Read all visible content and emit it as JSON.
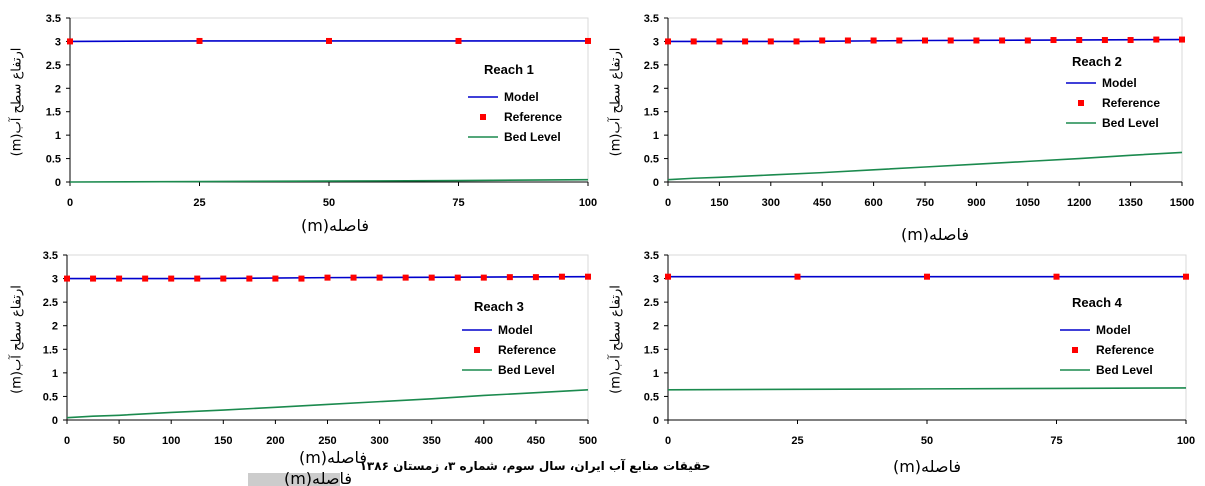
{
  "chart_data": [
    {
      "type": "line",
      "title": "Reach 1",
      "xlabel": "فاصله(m)",
      "ylabel": "ارتفاع سطح آب(m)",
      "xlim": [
        0,
        100
      ],
      "ylim": [
        0,
        3.5
      ],
      "x_ticks": [
        "0",
        "25",
        "50",
        "75",
        "100"
      ],
      "y_ticks": [
        "0",
        "0.5",
        "1",
        "1.5",
        "2",
        "2.5",
        "3",
        "3.5"
      ],
      "grid": false,
      "legend": "right",
      "series": [
        {
          "name": "Model",
          "style": "line",
          "color": "#0000cc",
          "x": [
            0,
            25,
            50,
            75,
            100
          ],
          "y": [
            3.0,
            3.01,
            3.01,
            3.01,
            3.01
          ]
        },
        {
          "name": "Reference",
          "style": "marker",
          "color": "#ff0000",
          "x": [
            0,
            25,
            50,
            75,
            100
          ],
          "y": [
            3.0,
            3.01,
            3.01,
            3.01,
            3.01
          ]
        },
        {
          "name": "Bed Level",
          "style": "line",
          "color": "#1b8a4e",
          "x": [
            0,
            25,
            50,
            75,
            100
          ],
          "y": [
            0.0,
            0.01,
            0.02,
            0.03,
            0.05
          ]
        }
      ]
    },
    {
      "type": "line",
      "title": "Reach 2",
      "xlabel": "فاصله(m)",
      "ylabel": "ارتفاع سطح آب(m)",
      "xlim": [
        0,
        1500
      ],
      "ylim": [
        0,
        3.5
      ],
      "x_ticks": [
        "0",
        "150",
        "300",
        "450",
        "600",
        "750",
        "900",
        "1050",
        "1200",
        "1350",
        "1500"
      ],
      "y_ticks": [
        "0",
        "0.5",
        "1",
        "1.5",
        "2",
        "2.5",
        "3",
        "3.5"
      ],
      "grid": false,
      "legend": "right",
      "series": [
        {
          "name": "Model",
          "style": "line",
          "color": "#0000cc",
          "x": [
            0,
            375,
            750,
            1125,
            1500
          ],
          "y": [
            3.0,
            3.0,
            3.02,
            3.03,
            3.04
          ]
        },
        {
          "name": "Reference",
          "style": "marker",
          "color": "#ff0000",
          "x": [
            0,
            75,
            150,
            225,
            300,
            375,
            450,
            525,
            600,
            675,
            750,
            825,
            900,
            975,
            1050,
            1125,
            1200,
            1275,
            1350,
            1425,
            1500
          ],
          "y": [
            3.0,
            3.0,
            3.0,
            3.0,
            3.0,
            3.0,
            3.02,
            3.02,
            3.02,
            3.02,
            3.02,
            3.02,
            3.02,
            3.02,
            3.02,
            3.03,
            3.03,
            3.03,
            3.03,
            3.04,
            3.04
          ]
        },
        {
          "name": "Bed Level",
          "style": "line",
          "color": "#1b8a4e",
          "x": [
            0,
            75,
            150,
            300,
            450,
            600,
            750,
            900,
            1050,
            1200,
            1350,
            1500
          ],
          "y": [
            0.05,
            0.08,
            0.1,
            0.15,
            0.2,
            0.26,
            0.32,
            0.38,
            0.44,
            0.5,
            0.57,
            0.63
          ]
        }
      ]
    },
    {
      "type": "line",
      "title": "Reach 3",
      "xlabel": "فاصله(m)",
      "ylabel": "ارتفاع سطح آب(m)",
      "xlim": [
        0,
        500
      ],
      "ylim": [
        0,
        3.5
      ],
      "x_ticks": [
        "0",
        "50",
        "100",
        "150",
        "200",
        "250",
        "300",
        "350",
        "400",
        "450",
        "500"
      ],
      "y_ticks": [
        "0",
        "0.5",
        "1",
        "1.5",
        "2",
        "2.5",
        "3",
        "3.5"
      ],
      "grid": false,
      "legend": "right",
      "series": [
        {
          "name": "Model",
          "style": "line",
          "color": "#0000cc",
          "x": [
            0,
            125,
            250,
            375,
            500
          ],
          "y": [
            3.0,
            3.0,
            3.02,
            3.03,
            3.04
          ]
        },
        {
          "name": "Reference",
          "style": "marker",
          "color": "#ff0000",
          "x": [
            0,
            25,
            50,
            75,
            100,
            125,
            150,
            175,
            200,
            225,
            250,
            275,
            300,
            325,
            350,
            375,
            400,
            425,
            450,
            475,
            500
          ],
          "y": [
            3.0,
            3.0,
            3.0,
            3.0,
            3.0,
            3.0,
            3.0,
            3.0,
            3.0,
            3.0,
            3.02,
            3.02,
            3.02,
            3.02,
            3.02,
            3.02,
            3.02,
            3.03,
            3.03,
            3.04,
            3.04
          ]
        },
        {
          "name": "Bed Level",
          "style": "line",
          "color": "#1b8a4e",
          "x": [
            0,
            25,
            50,
            100,
            150,
            200,
            250,
            300,
            350,
            400,
            450,
            500
          ],
          "y": [
            0.05,
            0.08,
            0.1,
            0.16,
            0.21,
            0.27,
            0.33,
            0.39,
            0.45,
            0.52,
            0.58,
            0.64
          ]
        }
      ]
    },
    {
      "type": "line",
      "title": "Reach 4",
      "xlabel": "فاصله(m)",
      "ylabel": "ارتفاع سطح آب(m)",
      "xlim": [
        0,
        100
      ],
      "ylim": [
        0,
        3.5
      ],
      "x_ticks": [
        "0",
        "25",
        "50",
        "75",
        "100"
      ],
      "y_ticks": [
        "0",
        "0.5",
        "1",
        "1.5",
        "2",
        "2.5",
        "3",
        "3.5"
      ],
      "grid": false,
      "legend": "right",
      "series": [
        {
          "name": "Model",
          "style": "line",
          "color": "#0000cc",
          "x": [
            0,
            25,
            50,
            75,
            100
          ],
          "y": [
            3.04,
            3.04,
            3.04,
            3.04,
            3.04
          ]
        },
        {
          "name": "Reference",
          "style": "marker",
          "color": "#ff0000",
          "x": [
            0,
            25,
            50,
            75,
            100
          ],
          "y": [
            3.04,
            3.04,
            3.04,
            3.04,
            3.04
          ]
        },
        {
          "name": "Bed Level",
          "style": "line",
          "color": "#1b8a4e",
          "x": [
            0,
            25,
            50,
            75,
            100
          ],
          "y": [
            0.64,
            0.65,
            0.66,
            0.67,
            0.68
          ]
        }
      ]
    }
  ],
  "footer": {
    "journal": "حقیقات منابع آب ایران، سال سوم، شماره ۳، زمستان ۱۳۸۶",
    "caption": "فاصله(m)"
  }
}
